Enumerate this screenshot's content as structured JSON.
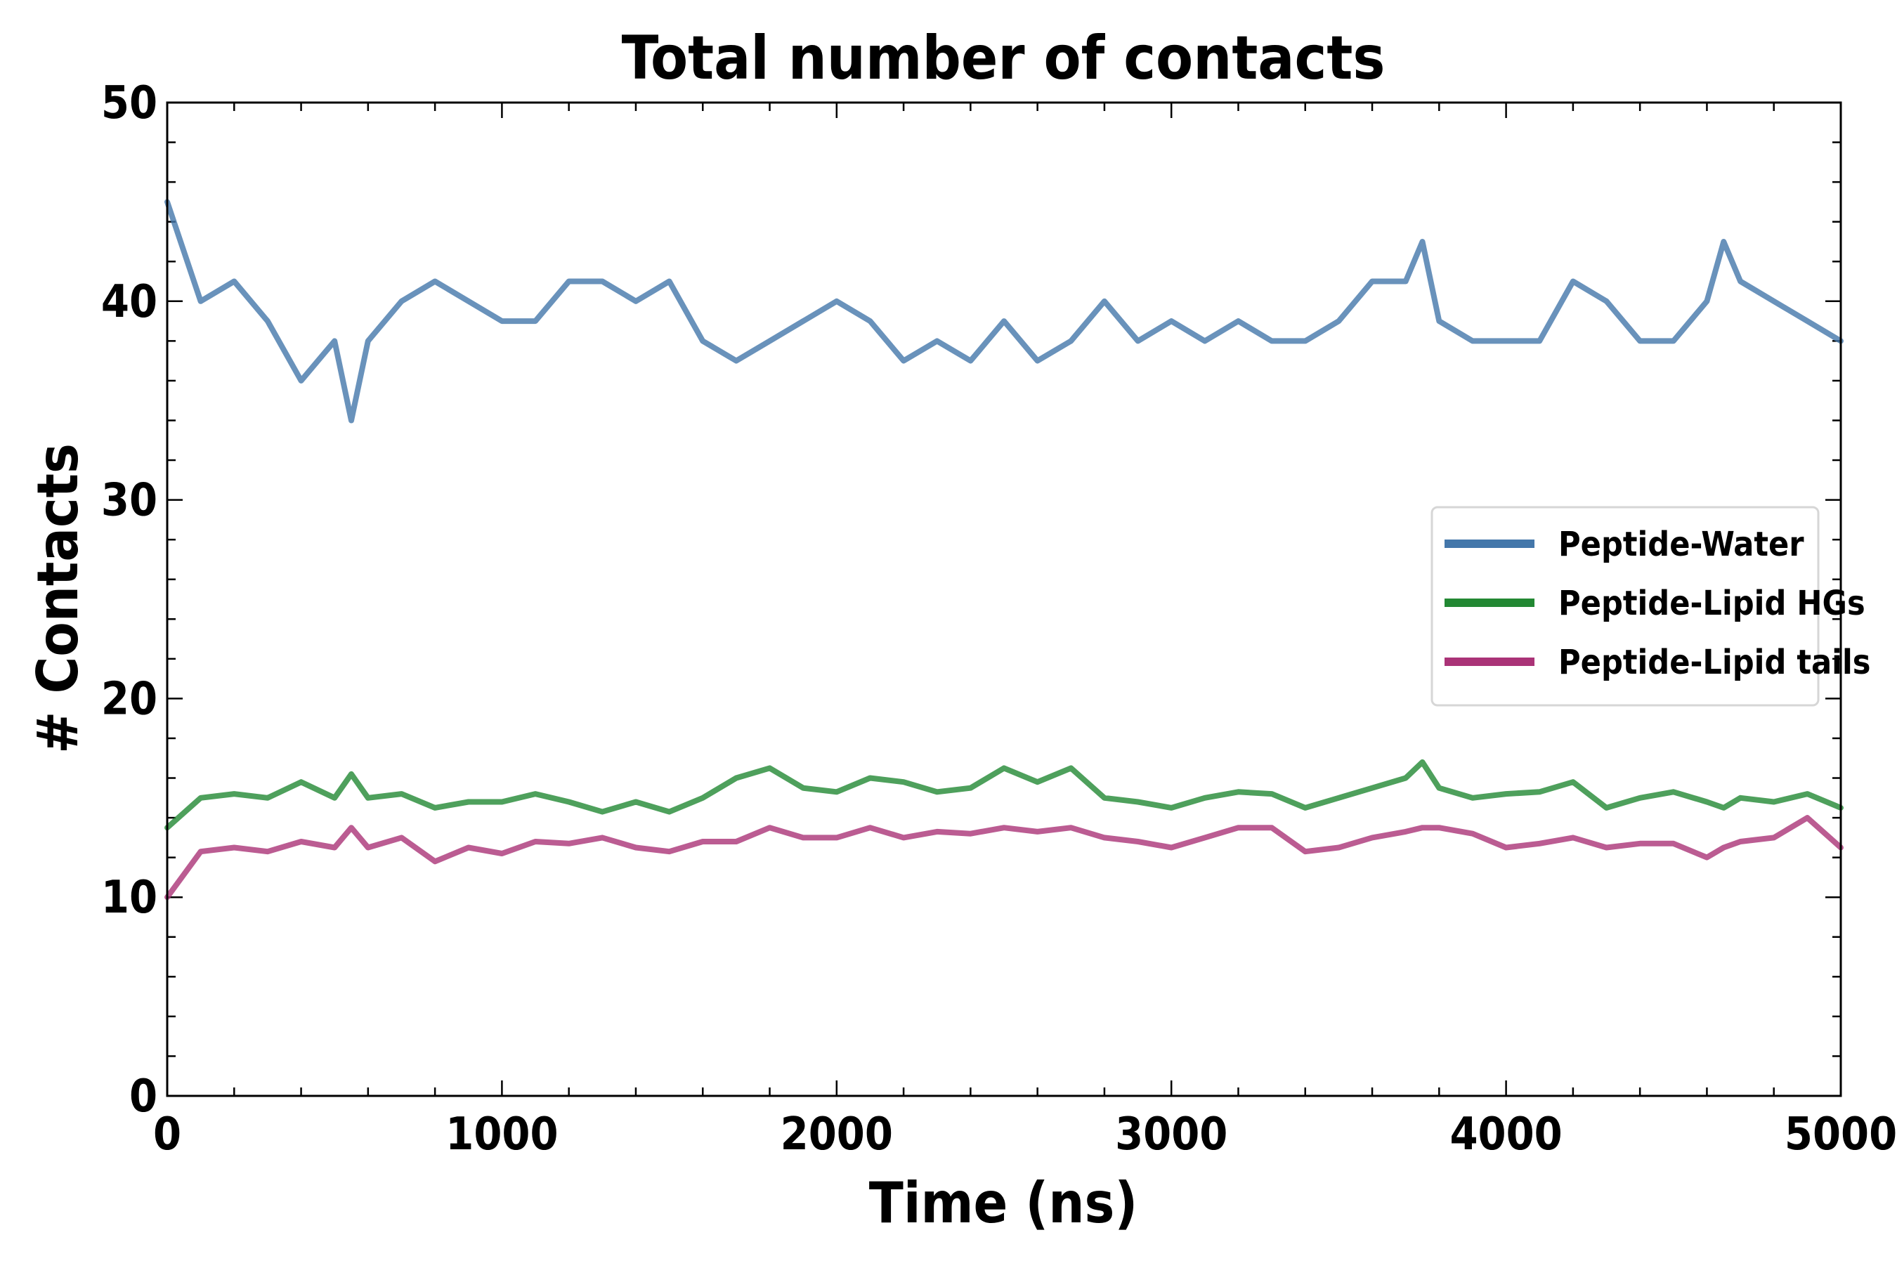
{
  "chart_data": {
    "type": "line",
    "title": "Total number of contacts",
    "xlabel": "Time (ns)",
    "ylabel": "# Contacts",
    "xlim": [
      0,
      5000
    ],
    "ylim": [
      0,
      50
    ],
    "x_ticks": [
      0,
      1000,
      2000,
      3000,
      4000,
      5000
    ],
    "y_ticks": [
      0,
      10,
      20,
      30,
      40,
      50
    ],
    "grid": false,
    "legend_position": "right",
    "x": [
      0,
      100,
      200,
      300,
      400,
      500,
      550,
      600,
      700,
      800,
      900,
      1000,
      1100,
      1200,
      1300,
      1400,
      1500,
      1600,
      1700,
      1800,
      1900,
      2000,
      2100,
      2200,
      2300,
      2400,
      2500,
      2600,
      2700,
      2800,
      2900,
      3000,
      3100,
      3200,
      3300,
      3400,
      3500,
      3600,
      3700,
      3750,
      3800,
      3900,
      4000,
      4100,
      4200,
      4300,
      4400,
      4500,
      4600,
      4650,
      4700,
      4800,
      4900,
      5000
    ],
    "series": [
      {
        "name": "Peptide-Water",
        "color": "#4477aa",
        "values": [
          45,
          40,
          41,
          39,
          36,
          38,
          34,
          38,
          40,
          41,
          40,
          39,
          39,
          41,
          41,
          40,
          41,
          38,
          37,
          38,
          39,
          40,
          39,
          37,
          38,
          37,
          39,
          37,
          38,
          40,
          38,
          39,
          38,
          39,
          38,
          38,
          39,
          41,
          41,
          43,
          39,
          38,
          38,
          38,
          41,
          40,
          38,
          38,
          40,
          43,
          41,
          40,
          39,
          38
        ]
      },
      {
        "name": "Peptide-Lipid HGs",
        "color": "#228833",
        "values": [
          13.5,
          15,
          15.2,
          15,
          15.8,
          15,
          16.2,
          15,
          15.2,
          14.5,
          14.8,
          14.8,
          15.2,
          14.8,
          14.3,
          14.8,
          14.3,
          15,
          16,
          16.5,
          15.5,
          15.3,
          16,
          15.8,
          15.3,
          15.5,
          16.5,
          15.8,
          16.5,
          15,
          14.8,
          14.5,
          15,
          15.3,
          15.2,
          14.5,
          15,
          15.5,
          16,
          16.8,
          15.5,
          15,
          15.2,
          15.3,
          15.8,
          14.5,
          15,
          15.3,
          14.8,
          14.5,
          15,
          14.8,
          15.2,
          14.5
        ]
      },
      {
        "name": "Peptide-Lipid tails",
        "color": "#aa3377",
        "values": [
          10,
          12.3,
          12.5,
          12.3,
          12.8,
          12.5,
          13.5,
          12.5,
          13,
          11.8,
          12.5,
          12.2,
          12.8,
          12.7,
          13,
          12.5,
          12.3,
          12.8,
          12.8,
          13.5,
          13,
          13,
          13.5,
          13,
          13.3,
          13.2,
          13.5,
          13.3,
          13.5,
          13,
          12.8,
          12.5,
          13,
          13.5,
          13.5,
          12.3,
          12.5,
          13,
          13.3,
          13.5,
          13.5,
          13.2,
          12.5,
          12.7,
          13,
          12.5,
          12.7,
          12.7,
          12,
          12.5,
          12.8,
          13,
          14,
          12.5
        ]
      }
    ]
  }
}
